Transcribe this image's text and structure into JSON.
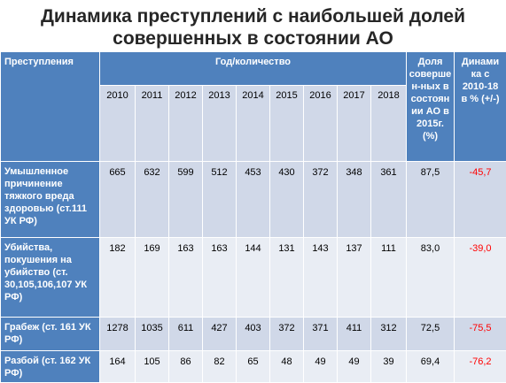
{
  "title": {
    "line1": "Динамика преступлений с наибольшей долей",
    "line2": "совершенных в состоянии АО"
  },
  "table": {
    "header": {
      "crime": "Преступления",
      "years_group": "Год/количество",
      "share": [
        "Доля",
        "соверше",
        "н-ных в",
        "состоян",
        "ии АО в",
        "2015г.",
        "(%)"
      ],
      "dynamics": [
        "Динами",
        "ка с",
        "2010-18",
        "в % (+/-)"
      ]
    },
    "years": [
      "2010",
      "2011",
      "2012",
      "2013",
      "2014",
      "2015",
      "2016",
      "2017",
      "2018"
    ],
    "rows": [
      {
        "name": [
          "Умышленное",
          "причинение",
          "тяжкого вреда",
          "здоровью (ст.111",
          "УК РФ)"
        ],
        "values": [
          "665",
          "632",
          "599",
          "512",
          "453",
          "430",
          "372",
          "348",
          "361"
        ],
        "share": "87,5",
        "dynamics": "-45,7"
      },
      {
        "name": [
          "Убийства,",
          "покушения на",
          "убийство (ст.",
          "30,105,106,107 УК",
          "РФ)"
        ],
        "values": [
          "182",
          "169",
          "163",
          "163",
          "144",
          "131",
          "143",
          "137",
          "111"
        ],
        "share": "83,0",
        "dynamics": "-39,0"
      },
      {
        "name": [
          "Грабеж (ст. 161 УК",
          "РФ)"
        ],
        "values": [
          "1278",
          "1035",
          "611",
          "427",
          "403",
          "372",
          "371",
          "411",
          "312"
        ],
        "share": "72,5",
        "dynamics": "-75,5"
      },
      {
        "name": [
          "Разбой (ст. 162 УК",
          "РФ)"
        ],
        "values": [
          "164",
          "105",
          "86",
          "82",
          "65",
          "48",
          "49",
          "49",
          "39"
        ],
        "share": "69,4",
        "dynamics": "-76,2"
      }
    ]
  },
  "colors": {
    "header_bg": "#4f81bd",
    "band_odd": "#d0d8e8",
    "band_even": "#e9edf4",
    "negative_text": "#ff0000"
  }
}
